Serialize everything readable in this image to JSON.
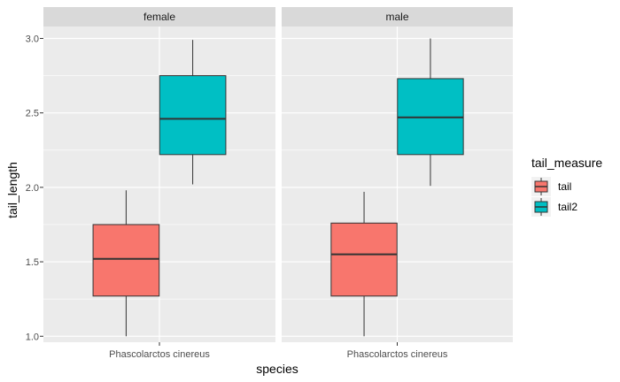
{
  "chart_data": {
    "type": "boxplot",
    "xlabel": "species",
    "ylabel": "tail_length",
    "ylim": [
      0.96,
      3.08
    ],
    "y_ticks": [
      "1.0",
      "1.5",
      "2.0",
      "2.5",
      "3.0"
    ],
    "grid": true,
    "legend_position": "right",
    "legend_title": "tail_measure",
    "series": [
      {
        "name": "tail",
        "color": "#F8766D"
      },
      {
        "name": "tail2",
        "color": "#00BFC4"
      }
    ],
    "facets": [
      {
        "label": "female",
        "category": "Phascolarctos cinereus",
        "boxes": [
          {
            "series": "tail",
            "min": 1.0,
            "q1": 1.27,
            "median": 1.52,
            "q3": 1.75,
            "max": 1.98
          },
          {
            "series": "tail2",
            "min": 2.02,
            "q1": 2.22,
            "median": 2.46,
            "q3": 2.75,
            "max": 2.99
          }
        ]
      },
      {
        "label": "male",
        "category": "Phascolarctos cinereus",
        "boxes": [
          {
            "series": "tail",
            "min": 1.0,
            "q1": 1.27,
            "median": 1.55,
            "q3": 1.76,
            "max": 1.97
          },
          {
            "series": "tail2",
            "min": 2.01,
            "q1": 2.22,
            "median": 2.47,
            "q3": 2.73,
            "max": 3.0
          }
        ]
      }
    ]
  }
}
